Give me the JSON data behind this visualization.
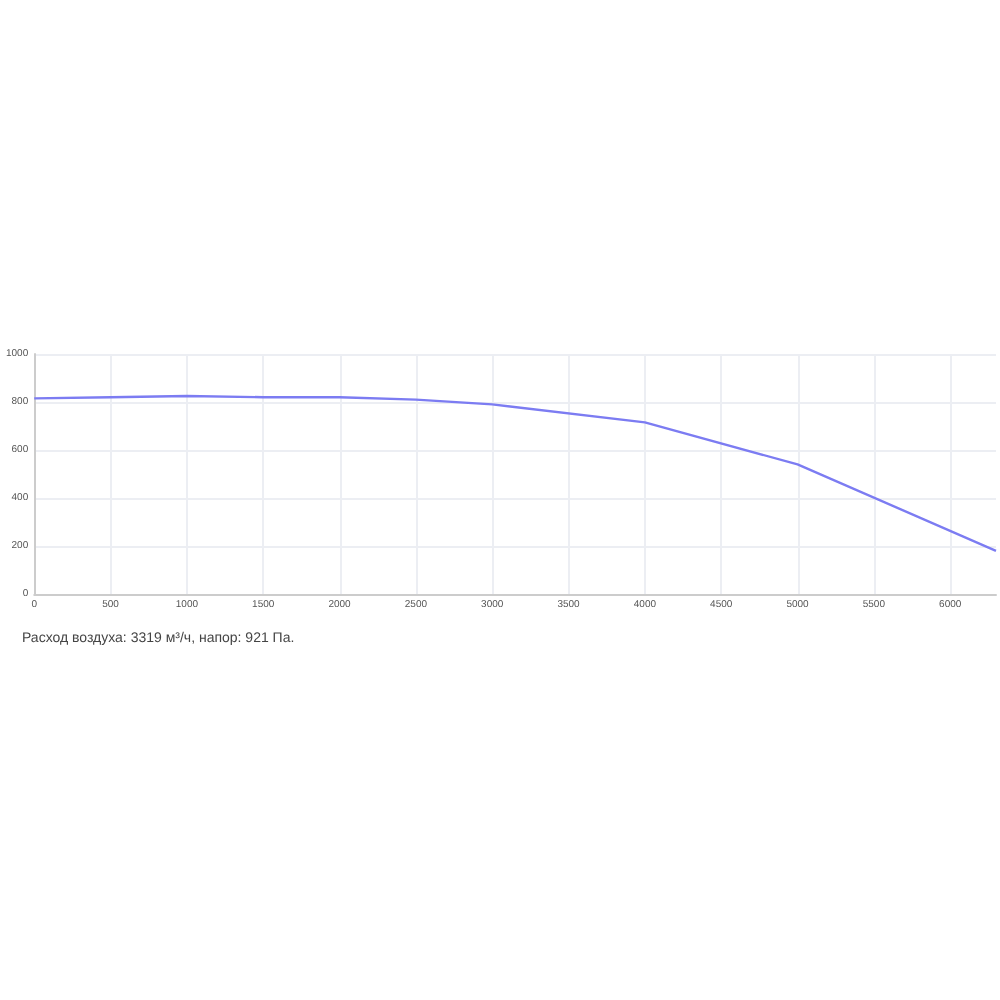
{
  "chart_data": {
    "type": "line",
    "x": [
      0,
      500,
      1000,
      1500,
      2000,
      2500,
      3000,
      4000,
      5000,
      6300
    ],
    "series": [
      {
        "color": "#7c7cf2",
        "values": [
          815,
          820,
          825,
          820,
          820,
          810,
          790,
          715,
          540,
          180
        ]
      }
    ],
    "xlim": [
      0,
      6300
    ],
    "xticks": [
      0,
      500,
      1000,
      1500,
      2000,
      2500,
      3000,
      3500,
      4000,
      4500,
      5000,
      5500,
      6000
    ],
    "ylim": [
      0,
      1000
    ],
    "yticks": [
      0,
      200,
      400,
      600,
      800,
      1000
    ],
    "grid": true,
    "marker": "none",
    "line_style": "solid",
    "annotations": [
      "Расход воздуха: 3319 м³/ч, напор: 921 Па."
    ]
  }
}
